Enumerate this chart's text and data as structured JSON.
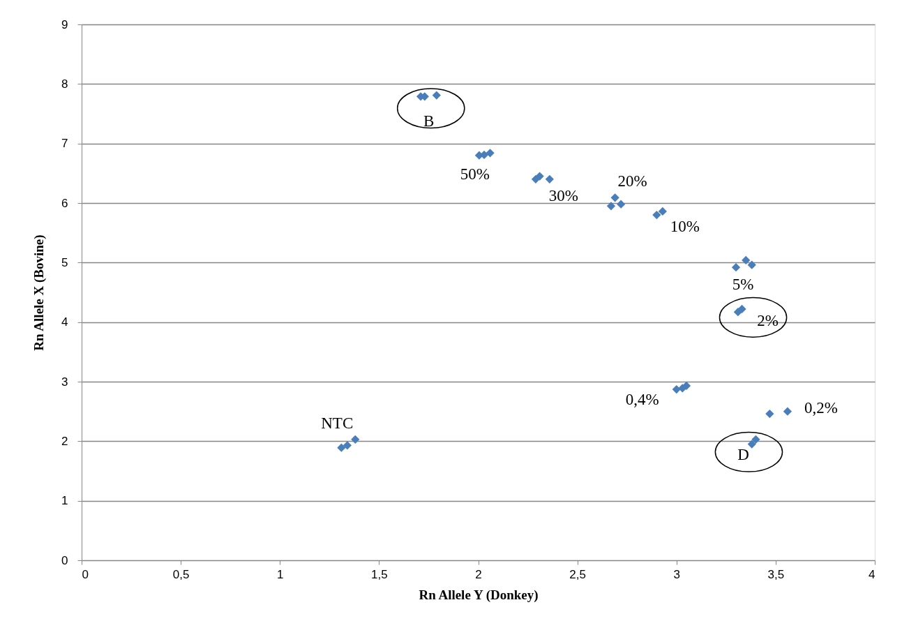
{
  "chart_data": {
    "type": "scatter",
    "xlabel": "Rn Allele Y (Donkey)",
    "ylabel": "Rn Allele X (Bovine)",
    "x": [
      1.71,
      1.73,
      1.79,
      2.005,
      2.03,
      2.06,
      2.29,
      2.31,
      2.36,
      2.67,
      2.69,
      2.72,
      2.9,
      2.92,
      2.93,
      3.3,
      3.35,
      3.38,
      3.31,
      3.33,
      3.0,
      3.03,
      3.05,
      3.47,
      3.56,
      3.38,
      3.4,
      1.31,
      1.34,
      1.38
    ],
    "series": [
      {
        "color": "#4a7ebb",
        "values": [
          7.79,
          7.79,
          7.81,
          6.8,
          6.81,
          6.84,
          6.4,
          6.45,
          6.4,
          5.95,
          6.09,
          5.98,
          5.8,
          null,
          5.86,
          4.92,
          5.04,
          4.96,
          4.17,
          4.22,
          2.87,
          2.89,
          2.93,
          2.46,
          2.5,
          1.95,
          2.03,
          1.89,
          1.93,
          2.03
        ]
      }
    ],
    "xlim": [
      0,
      4
    ],
    "xticks": [
      0,
      {
        "value": 0.5,
        "label": "0,5"
      },
      1,
      {
        "value": 1.5,
        "label": "1,5"
      },
      2,
      {
        "value": 2.5,
        "label": "2,5"
      },
      3,
      {
        "value": 3.5,
        "label": "3,5"
      },
      4
    ],
    "ylim": [
      0,
      9
    ],
    "yticks": [
      0,
      1,
      2,
      3,
      4,
      5,
      6,
      7,
      8,
      9
    ],
    "grid": "y",
    "marker": "diamond",
    "legend": false,
    "annotations": [
      {
        "text": "B",
        "x": 1.73,
        "y": 7.79
      },
      {
        "text": "50%",
        "x": 2.005,
        "y": 6.8
      },
      {
        "text": "30%",
        "x": 2.36,
        "y": 6.4
      },
      {
        "text": "20%",
        "x": 2.69,
        "y": 6.09
      },
      {
        "text": "10%",
        "x": 2.93,
        "y": 5.86
      },
      {
        "text": "5%",
        "x": 3.3,
        "y": 4.92
      },
      {
        "text": "2%",
        "x": 3.33,
        "y": 4.22
      },
      {
        "text": "0,4%",
        "x": 3.0,
        "y": 2.87
      },
      {
        "text": "0,2%",
        "x": 3.56,
        "y": 2.5
      },
      {
        "text": "D",
        "x": 3.4,
        "y": 2.03
      },
      {
        "text": "NTC",
        "x": 1.38,
        "y": 2.03
      }
    ]
  }
}
